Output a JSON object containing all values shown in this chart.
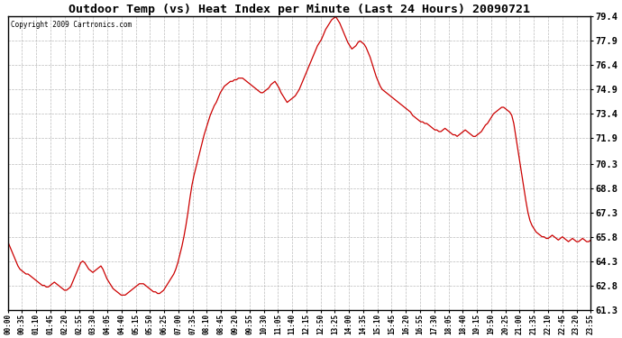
{
  "title": "Outdoor Temp (vs) Heat Index per Minute (Last 24 Hours) 20090721",
  "copyright_text": "Copyright 2009 Cartronics.com",
  "line_color": "#cc0000",
  "background_color": "#ffffff",
  "grid_color": "#aaaaaa",
  "yticks": [
    61.3,
    62.8,
    64.3,
    65.8,
    67.3,
    68.8,
    70.3,
    71.9,
    73.4,
    74.9,
    76.4,
    77.9,
    79.4
  ],
  "ylim": [
    61.3,
    79.4
  ],
  "xtick_labels": [
    "00:00",
    "00:35",
    "01:10",
    "01:45",
    "02:20",
    "02:55",
    "03:30",
    "04:05",
    "04:40",
    "05:15",
    "05:50",
    "06:25",
    "07:00",
    "07:35",
    "08:10",
    "08:45",
    "09:20",
    "09:55",
    "10:30",
    "11:05",
    "11:40",
    "12:15",
    "12:50",
    "13:25",
    "14:00",
    "14:35",
    "15:10",
    "15:45",
    "16:20",
    "16:55",
    "17:30",
    "18:05",
    "18:40",
    "19:15",
    "19:50",
    "20:25",
    "21:00",
    "21:35",
    "22:10",
    "22:45",
    "23:20",
    "23:55"
  ],
  "data_y": [
    65.5,
    65.2,
    64.9,
    64.6,
    64.3,
    64.0,
    63.8,
    63.7,
    63.6,
    63.5,
    63.5,
    63.4,
    63.3,
    63.2,
    63.1,
    63.0,
    62.9,
    62.8,
    62.8,
    62.7,
    62.7,
    62.8,
    62.9,
    63.0,
    62.9,
    62.8,
    62.7,
    62.6,
    62.5,
    62.5,
    62.6,
    62.7,
    63.0,
    63.3,
    63.6,
    63.9,
    64.2,
    64.3,
    64.2,
    64.0,
    63.8,
    63.7,
    63.6,
    63.7,
    63.8,
    63.9,
    64.0,
    63.8,
    63.5,
    63.2,
    63.0,
    62.8,
    62.6,
    62.5,
    62.4,
    62.3,
    62.2,
    62.2,
    62.2,
    62.3,
    62.4,
    62.5,
    62.6,
    62.7,
    62.8,
    62.9,
    62.9,
    62.9,
    62.8,
    62.7,
    62.6,
    62.5,
    62.4,
    62.4,
    62.3,
    62.3,
    62.4,
    62.5,
    62.7,
    62.9,
    63.1,
    63.3,
    63.5,
    63.8,
    64.2,
    64.7,
    65.2,
    65.8,
    66.5,
    67.3,
    68.2,
    69.0,
    69.6,
    70.1,
    70.6,
    71.1,
    71.6,
    72.1,
    72.5,
    72.9,
    73.3,
    73.6,
    73.9,
    74.1,
    74.4,
    74.7,
    74.9,
    75.1,
    75.2,
    75.3,
    75.4,
    75.4,
    75.5,
    75.5,
    75.6,
    75.6,
    75.6,
    75.5,
    75.4,
    75.3,
    75.2,
    75.1,
    75.0,
    74.9,
    74.8,
    74.7,
    74.7,
    74.8,
    74.9,
    75.0,
    75.2,
    75.3,
    75.4,
    75.2,
    75.0,
    74.7,
    74.5,
    74.3,
    74.1,
    74.2,
    74.3,
    74.4,
    74.5,
    74.7,
    74.9,
    75.2,
    75.5,
    75.8,
    76.1,
    76.4,
    76.7,
    77.0,
    77.3,
    77.6,
    77.8,
    78.0,
    78.3,
    78.6,
    78.8,
    79.0,
    79.2,
    79.3,
    79.4,
    79.2,
    79.0,
    78.7,
    78.4,
    78.1,
    77.8,
    77.6,
    77.4,
    77.5,
    77.6,
    77.8,
    77.9,
    77.8,
    77.7,
    77.5,
    77.2,
    76.9,
    76.5,
    76.1,
    75.7,
    75.4,
    75.1,
    74.9,
    74.8,
    74.7,
    74.6,
    74.5,
    74.4,
    74.3,
    74.2,
    74.1,
    74.0,
    73.9,
    73.8,
    73.7,
    73.6,
    73.5,
    73.3,
    73.2,
    73.1,
    73.0,
    72.9,
    72.9,
    72.8,
    72.8,
    72.7,
    72.6,
    72.5,
    72.4,
    72.4,
    72.3,
    72.3,
    72.4,
    72.5,
    72.4,
    72.3,
    72.2,
    72.1,
    72.1,
    72.0,
    72.1,
    72.2,
    72.3,
    72.4,
    72.3,
    72.2,
    72.1,
    72.0,
    72.0,
    72.1,
    72.2,
    72.3,
    72.5,
    72.7,
    72.8,
    73.0,
    73.2,
    73.4,
    73.5,
    73.6,
    73.7,
    73.8,
    73.8,
    73.7,
    73.6,
    73.5,
    73.3,
    72.8,
    72.0,
    71.2,
    70.4,
    69.6,
    68.8,
    68.0,
    67.3,
    66.8,
    66.5,
    66.3,
    66.1,
    66.0,
    65.9,
    65.8,
    65.8,
    65.7,
    65.7,
    65.8,
    65.9,
    65.8,
    65.7,
    65.6,
    65.7,
    65.8,
    65.7,
    65.6,
    65.5,
    65.6,
    65.7,
    65.6,
    65.5,
    65.5,
    65.6,
    65.7,
    65.6,
    65.5,
    65.5,
    65.6
  ]
}
